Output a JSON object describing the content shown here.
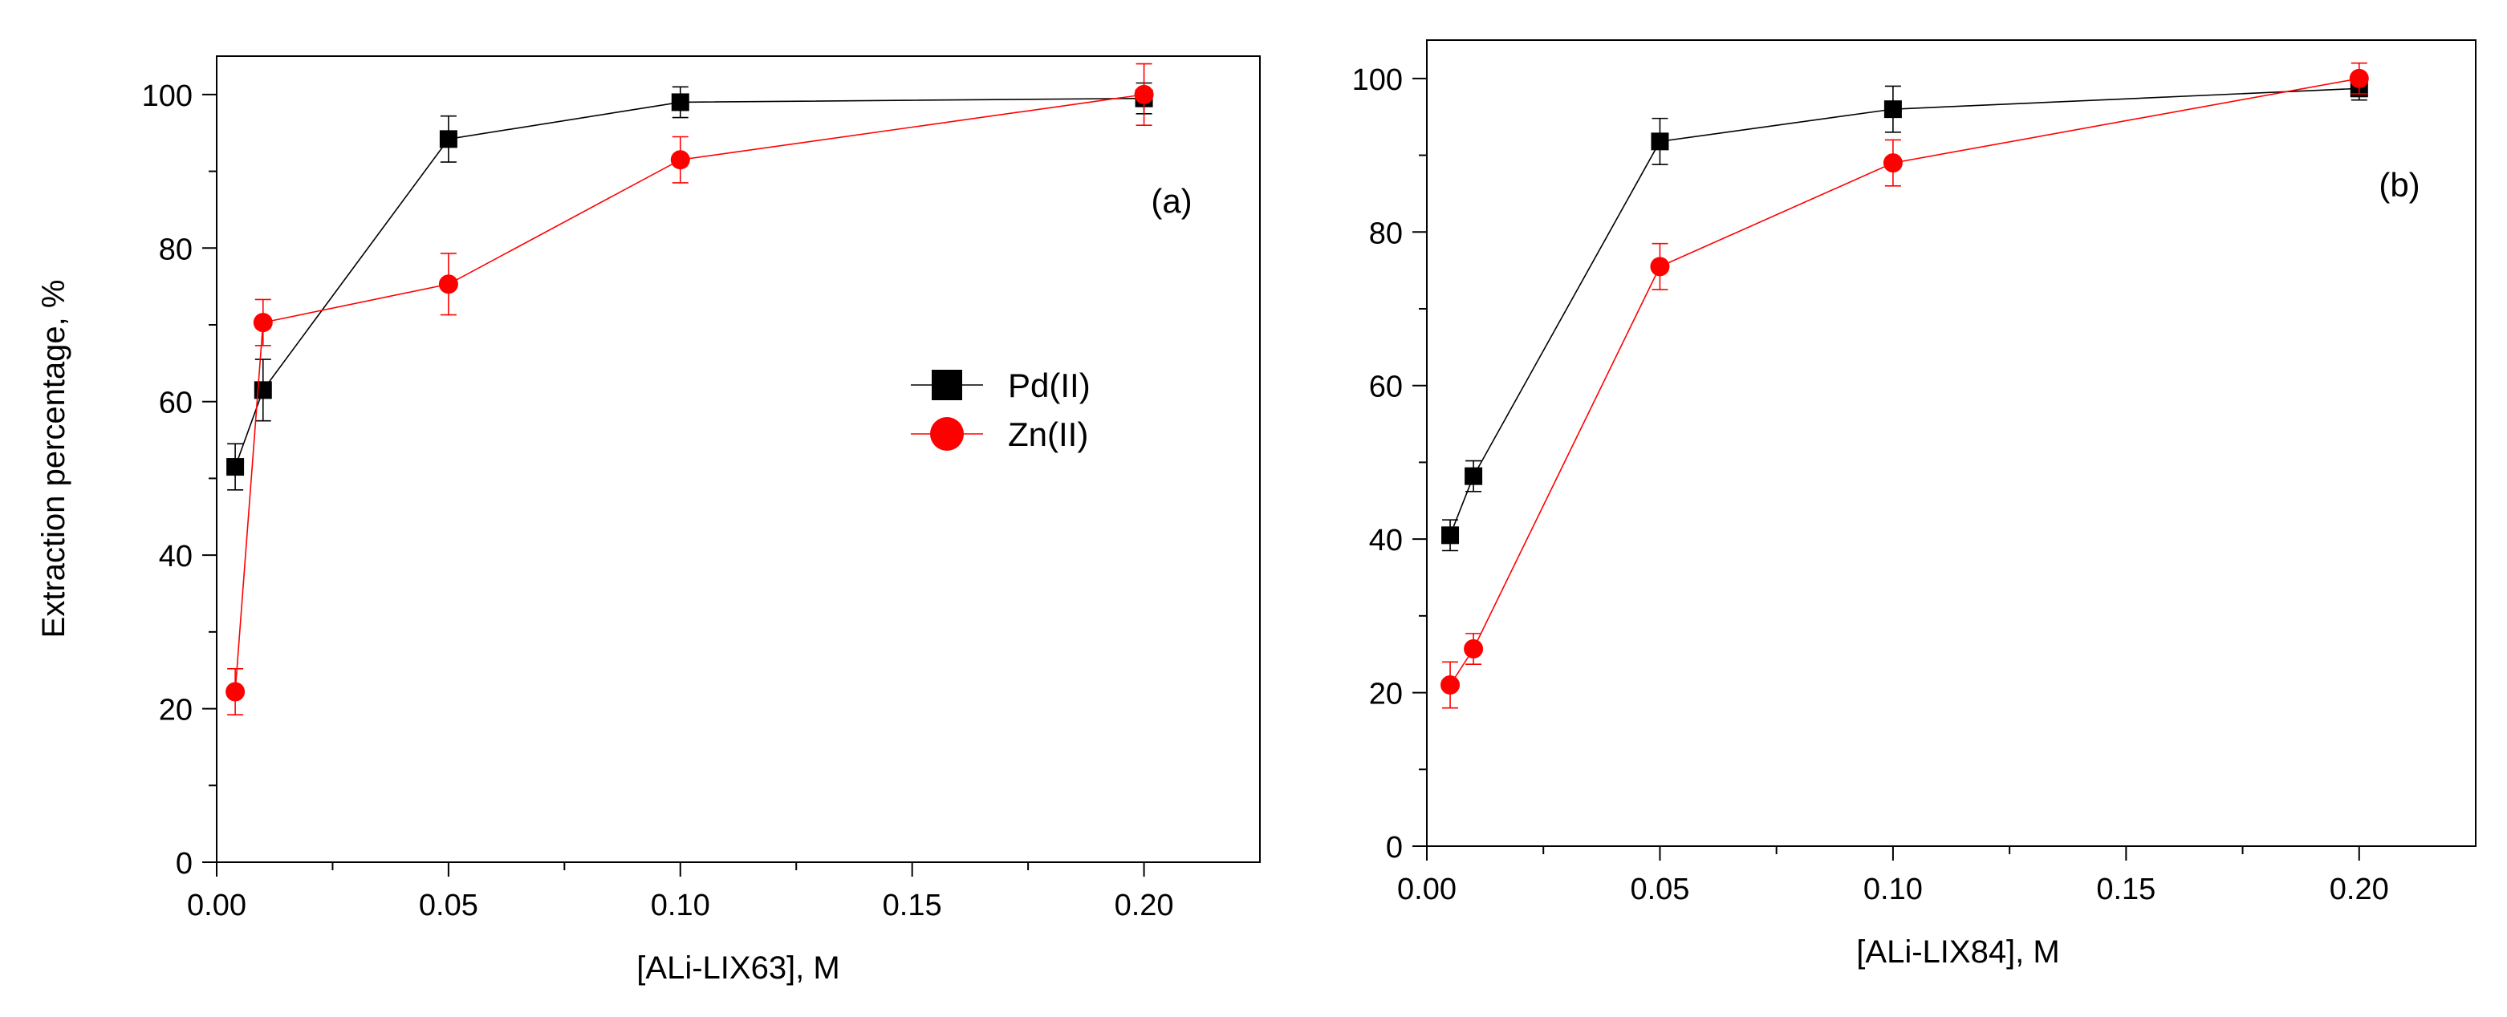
{
  "chart_data": [
    {
      "type": "line",
      "panel_label": "(a)",
      "xlabel": "[ALi-LIX63], M",
      "ylabel": "Extraction percentage, %",
      "xlim": [
        0.0,
        0.225
      ],
      "ylim": [
        0,
        105
      ],
      "xticks": [
        0.0,
        0.05,
        0.1,
        0.15,
        0.2
      ],
      "xtick_labels": [
        "0.00",
        "0.05",
        "0.10",
        "0.15",
        "0.20"
      ],
      "yticks": [
        0,
        20,
        40,
        60,
        80,
        100
      ],
      "ytick_labels": [
        "0",
        "20",
        "40",
        "60",
        "80",
        "100"
      ],
      "legend": "center-right",
      "series": [
        {
          "name": "Pd(II)",
          "color": "#000000",
          "marker": "square",
          "x": [
            0.004,
            0.01,
            0.05,
            0.1,
            0.2
          ],
          "y": [
            51.5,
            61.5,
            94.2,
            99.0,
            99.5
          ],
          "err": [
            3,
            4,
            3,
            2,
            2
          ]
        },
        {
          "name": "Zn(II)",
          "color": "#ff0000",
          "marker": "circle",
          "x": [
            0.004,
            0.01,
            0.05,
            0.1,
            0.2
          ],
          "y": [
            22.2,
            70.3,
            75.3,
            91.5,
            100.0
          ],
          "err": [
            3,
            3,
            4,
            3,
            4
          ]
        }
      ]
    },
    {
      "type": "line",
      "panel_label": "(b)",
      "xlabel": "[ALi-LIX84], M",
      "ylabel": "",
      "xlim": [
        0.0,
        0.225
      ],
      "ylim": [
        0,
        105
      ],
      "xticks": [
        0.0,
        0.05,
        0.1,
        0.15,
        0.2
      ],
      "xtick_labels": [
        "0.00",
        "0.05",
        "0.10",
        "0.15",
        "0.20"
      ],
      "yticks": [
        0,
        20,
        40,
        60,
        80,
        100
      ],
      "ytick_labels": [
        "0",
        "20",
        "40",
        "60",
        "80",
        "100"
      ],
      "legend": "none",
      "series": [
        {
          "name": "Pd(II)",
          "color": "#000000",
          "marker": "square",
          "x": [
            0.005,
            0.01,
            0.05,
            0.1,
            0.2
          ],
          "y": [
            40.5,
            48.2,
            91.8,
            96.0,
            98.7
          ],
          "err": [
            2,
            2,
            3,
            3,
            1.5
          ]
        },
        {
          "name": "Zn(II)",
          "color": "#ff0000",
          "marker": "circle",
          "x": [
            0.005,
            0.01,
            0.05,
            0.1,
            0.2
          ],
          "y": [
            21.0,
            25.7,
            75.5,
            89.0,
            100.0
          ],
          "err": [
            3,
            2,
            3,
            3,
            2
          ]
        }
      ]
    }
  ]
}
